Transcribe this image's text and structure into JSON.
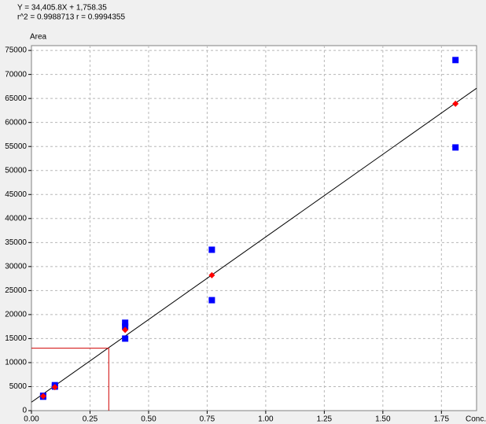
{
  "chart_data": {
    "type": "scatter",
    "title": "Y = 34,405.8X + 1,758.35",
    "subtitle": "r^2 = 0.9988713  r = 0.9994355",
    "x_label": "Conc.",
    "y_label": "Area",
    "xlim": [
      0,
      1.9
    ],
    "ylim": [
      0,
      76000
    ],
    "xticks": [
      {
        "value": 0,
        "label": "0.00"
      },
      {
        "value": 0.25,
        "label": "0.25"
      },
      {
        "value": 0.5,
        "label": "0.50"
      },
      {
        "value": 0.75,
        "label": "0.75"
      },
      {
        "value": 1,
        "label": "1.00"
      },
      {
        "value": 1.25,
        "label": "1.25"
      },
      {
        "value": 1.5,
        "label": "1.50"
      },
      {
        "value": 1.75,
        "label": "1.75"
      }
    ],
    "yticks": [
      0,
      5000,
      10000,
      15000,
      20000,
      25000,
      30000,
      35000,
      40000,
      45000,
      50000,
      55000,
      60000,
      65000,
      70000,
      75000
    ],
    "grid": true,
    "series": [
      {
        "color": "#0000ff",
        "marker": "square",
        "x": [
          0.05,
          0.05,
          0.1,
          0.1,
          0.4,
          0.4,
          0.4,
          0.77,
          0.77,
          1.81,
          1.81
        ],
        "values": [
          3100,
          2900,
          5300,
          5000,
          18300,
          17500,
          15000,
          33500,
          23000,
          73000,
          54800
        ]
      },
      {
        "color": "#ff0000",
        "marker": "diamond",
        "x": [
          0.05,
          0.1,
          0.4,
          0.77,
          1.81
        ],
        "values": [
          3000,
          4900,
          16800,
          28200,
          63900
        ]
      }
    ],
    "fit": {
      "slope": 34405.8,
      "intercept": 1758.35,
      "color": "#000000"
    },
    "marker": {
      "x": 0.33,
      "y": 13000,
      "color": "#d00000"
    }
  }
}
